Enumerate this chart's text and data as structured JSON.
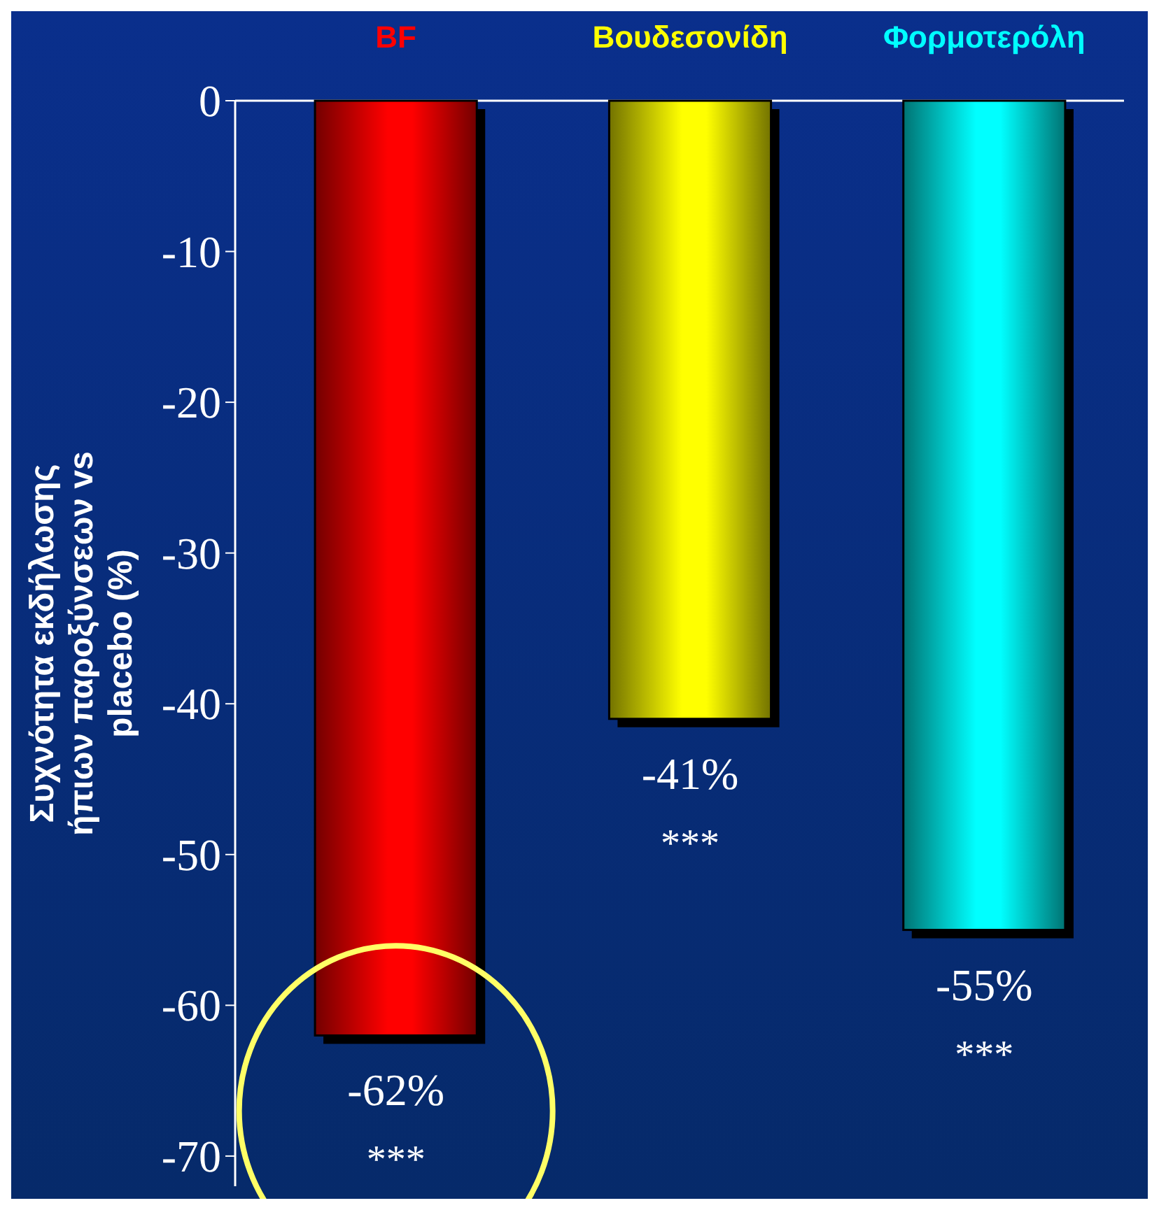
{
  "chart_data": {
    "type": "bar",
    "categories": [
      "BF",
      "Βουδεσονίδη",
      "Φορμοτερόλη"
    ],
    "values": [
      -62,
      -41,
      -55
    ],
    "colors": [
      "#ff0000",
      "#ffff00",
      "#00ffff"
    ],
    "value_labels": [
      "-62%",
      "-41%",
      "-55%"
    ],
    "ylabel": "Συχνότητα εκδήλωσης ήπιων παροξύνσεων vs placebo (%)",
    "ylim": [
      -72,
      0
    ],
    "yticks": [
      0,
      -10,
      -20,
      -30,
      -40,
      -50,
      -60,
      -70
    ],
    "annotations": [
      "***",
      "***",
      "***"
    ]
  }
}
